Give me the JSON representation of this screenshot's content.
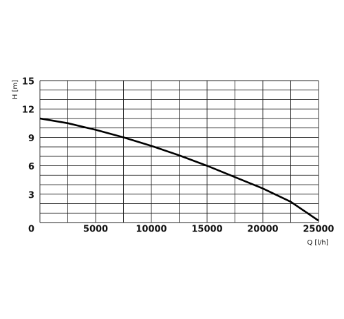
{
  "chart_data": {
    "type": "line",
    "x_label": "Q [l/h]",
    "y_label": "H [m]",
    "x": [
      0,
      2500,
      5000,
      7500,
      10000,
      12500,
      15000,
      17500,
      20000,
      22500,
      25000
    ],
    "series": [
      {
        "color": "#000000",
        "values": [
          11.0,
          10.5,
          9.8,
          9.0,
          8.1,
          7.1,
          6.0,
          4.8,
          3.6,
          2.2,
          0.2
        ]
      }
    ],
    "xlim": [
      0,
      25000
    ],
    "ylim": [
      0,
      15
    ],
    "xticks": [
      0,
      5000,
      10000,
      15000,
      20000,
      25000
    ],
    "yticks": [
      0,
      3,
      6,
      9,
      12,
      15
    ],
    "xgrid": [
      0,
      2500,
      5000,
      7500,
      10000,
      12500,
      15000,
      17500,
      20000,
      22500,
      25000
    ],
    "ygrid": [
      0,
      1,
      2,
      3,
      4,
      5,
      6,
      7,
      8,
      9,
      10,
      11,
      12,
      13,
      14,
      15
    ],
    "grid": true
  }
}
